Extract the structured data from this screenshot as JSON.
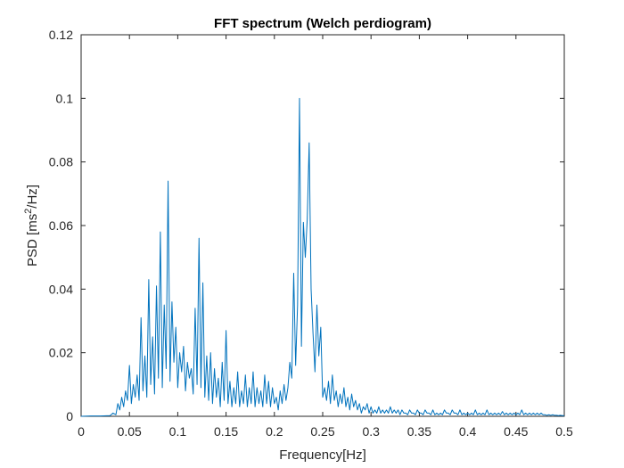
{
  "chart_data": {
    "type": "line",
    "title": "FFT spectrum (Welch perdiogram)",
    "xlabel": "Frequency[Hz]",
    "ylabel": {
      "prefix": "PSD [ms",
      "superscript": "2",
      "suffix": "/Hz]"
    },
    "xlim": [
      0,
      0.5
    ],
    "ylim": [
      0,
      0.12
    ],
    "xticks": [
      0,
      0.05,
      0.1,
      0.15,
      0.2,
      0.25,
      0.3,
      0.35,
      0.4,
      0.45,
      0.5
    ],
    "xtick_labels": [
      "0",
      "0.05",
      "0.1",
      "0.15",
      "0.2",
      "0.25",
      "0.3",
      "0.35",
      "0.4",
      "0.45",
      "0.5"
    ],
    "yticks": [
      0,
      0.02,
      0.04,
      0.06,
      0.08,
      0.1,
      0.12
    ],
    "ytick_labels": [
      "0",
      "0.02",
      "0.04",
      "0.06",
      "0.08",
      "0.1",
      "0.12"
    ],
    "grid": false,
    "line_color": "#0072bd",
    "series": [
      {
        "x": [
          0,
          0.01,
          0.02,
          0.03,
          0.033,
          0.036,
          0.038,
          0.04,
          0.042,
          0.044,
          0.046,
          0.048,
          0.05,
          0.052,
          0.054,
          0.056,
          0.058,
          0.06,
          0.062,
          0.064,
          0.066,
          0.068,
          0.07,
          0.072,
          0.074,
          0.076,
          0.078,
          0.08,
          0.082,
          0.084,
          0.086,
          0.088,
          0.09,
          0.092,
          0.094,
          0.096,
          0.098,
          0.1,
          0.102,
          0.104,
          0.106,
          0.108,
          0.11,
          0.112,
          0.114,
          0.116,
          0.118,
          0.12,
          0.122,
          0.124,
          0.126,
          0.128,
          0.13,
          0.132,
          0.134,
          0.136,
          0.138,
          0.14,
          0.142,
          0.144,
          0.146,
          0.148,
          0.15,
          0.152,
          0.154,
          0.156,
          0.158,
          0.16,
          0.162,
          0.164,
          0.166,
          0.168,
          0.17,
          0.172,
          0.174,
          0.176,
          0.178,
          0.18,
          0.182,
          0.184,
          0.186,
          0.188,
          0.19,
          0.192,
          0.194,
          0.196,
          0.198,
          0.2,
          0.202,
          0.204,
          0.206,
          0.208,
          0.21,
          0.212,
          0.214,
          0.216,
          0.218,
          0.22,
          0.222,
          0.224,
          0.226,
          0.228,
          0.23,
          0.232,
          0.234,
          0.236,
          0.238,
          0.24,
          0.242,
          0.244,
          0.246,
          0.248,
          0.25,
          0.252,
          0.254,
          0.256,
          0.258,
          0.26,
          0.262,
          0.264,
          0.266,
          0.268,
          0.27,
          0.272,
          0.274,
          0.276,
          0.278,
          0.28,
          0.282,
          0.284,
          0.286,
          0.288,
          0.29,
          0.292,
          0.294,
          0.296,
          0.298,
          0.3,
          0.302,
          0.304,
          0.306,
          0.308,
          0.31,
          0.312,
          0.314,
          0.316,
          0.318,
          0.32,
          0.322,
          0.324,
          0.326,
          0.328,
          0.33,
          0.332,
          0.334,
          0.336,
          0.338,
          0.34,
          0.342,
          0.344,
          0.346,
          0.348,
          0.35,
          0.352,
          0.354,
          0.356,
          0.358,
          0.36,
          0.362,
          0.364,
          0.366,
          0.368,
          0.37,
          0.372,
          0.374,
          0.376,
          0.378,
          0.38,
          0.382,
          0.384,
          0.386,
          0.388,
          0.39,
          0.392,
          0.394,
          0.396,
          0.398,
          0.4,
          0.402,
          0.404,
          0.406,
          0.408,
          0.41,
          0.412,
          0.414,
          0.416,
          0.418,
          0.42,
          0.422,
          0.424,
          0.426,
          0.428,
          0.43,
          0.432,
          0.434,
          0.436,
          0.438,
          0.44,
          0.442,
          0.444,
          0.446,
          0.448,
          0.45,
          0.452,
          0.454,
          0.456,
          0.458,
          0.46,
          0.462,
          0.464,
          0.466,
          0.468,
          0.47,
          0.472,
          0.474,
          0.476,
          0.478,
          0.48,
          0.482,
          0.484,
          0.486,
          0.488,
          0.49,
          0.492,
          0.494,
          0.496,
          0.498,
          0.5
        ],
        "y": [
          0,
          0.0001,
          0.0001,
          0.0002,
          0.001,
          0.0005,
          0.004,
          0.002,
          0.006,
          0.003,
          0.008,
          0.005,
          0.016,
          0.004,
          0.01,
          0.006,
          0.013,
          0.005,
          0.031,
          0.008,
          0.019,
          0.006,
          0.043,
          0.01,
          0.025,
          0.007,
          0.041,
          0.012,
          0.058,
          0.009,
          0.035,
          0.015,
          0.074,
          0.011,
          0.036,
          0.017,
          0.028,
          0.009,
          0.02,
          0.014,
          0.022,
          0.008,
          0.017,
          0.012,
          0.015,
          0.007,
          0.034,
          0.01,
          0.056,
          0.009,
          0.042,
          0.006,
          0.019,
          0.005,
          0.02,
          0.004,
          0.015,
          0.006,
          0.012,
          0.003,
          0.017,
          0.005,
          0.027,
          0.004,
          0.011,
          0.003,
          0.009,
          0.004,
          0.014,
          0.003,
          0.008,
          0.004,
          0.013,
          0.003,
          0.009,
          0.004,
          0.014,
          0.003,
          0.009,
          0.004,
          0.008,
          0.003,
          0.013,
          0.004,
          0.011,
          0.003,
          0.009,
          0.004,
          0.006,
          0.002,
          0.008,
          0.004,
          0.01,
          0.005,
          0.009,
          0.017,
          0.012,
          0.045,
          0.016,
          0.035,
          0.1,
          0.022,
          0.061,
          0.05,
          0.062,
          0.086,
          0.04,
          0.026,
          0.014,
          0.035,
          0.019,
          0.028,
          0.006,
          0.009,
          0.005,
          0.011,
          0.004,
          0.013,
          0.005,
          0.008,
          0.003,
          0.007,
          0.004,
          0.009,
          0.003,
          0.006,
          0.002,
          0.007,
          0.003,
          0.005,
          0.002,
          0.004,
          0.001,
          0.003,
          0.002,
          0.004,
          0.001,
          0.003,
          0.001,
          0.002,
          0.001,
          0.003,
          0.001,
          0.002,
          0.001,
          0.002,
          0.001,
          0.003,
          0.001,
          0.002,
          0.001,
          0.002,
          0.0005,
          0.002,
          0.001,
          0.001,
          0.0005,
          0.002,
          0.001,
          0.001,
          0.0005,
          0.002,
          0.001,
          0.001,
          0.0005,
          0.002,
          0.001,
          0.001,
          0.0005,
          0.002,
          0.0005,
          0.001,
          0.0005,
          0.001,
          0.0005,
          0.002,
          0.001,
          0.001,
          0.0005,
          0.002,
          0.001,
          0.001,
          0.0005,
          0.002,
          0.0005,
          0.001,
          0.0005,
          0.001,
          0.0005,
          0.001,
          0.0005,
          0.002,
          0.0005,
          0.001,
          0.0005,
          0.001,
          0.0005,
          0.002,
          0.0005,
          0.001,
          0.0005,
          0.001,
          0.0005,
          0.001,
          0.0005,
          0.0015,
          0.0005,
          0.001,
          0.0005,
          0.001,
          0.0005,
          0.001,
          0.0005,
          0.001,
          0.0005,
          0.002,
          0.0005,
          0.001,
          0.0005,
          0.001,
          0.0005,
          0.001,
          0.0005,
          0.001,
          0.0005,
          0.001,
          0.0005,
          0.0005,
          0.0003,
          0.0005,
          0.0003,
          0.0005,
          0.0003,
          0.0003,
          0.0002,
          0.0003,
          0.0002,
          0.0002
        ]
      }
    ]
  }
}
